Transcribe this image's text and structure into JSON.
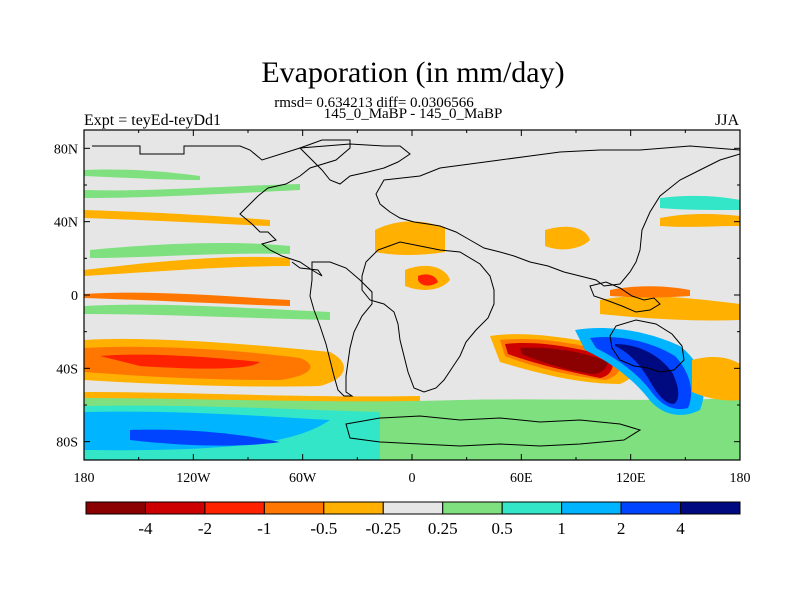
{
  "chart_data": {
    "type": "heatmap",
    "title": "Evaporation (in mm/day)",
    "stats": "rmsd= 0.634213 diff= 0.0306566",
    "subtitle": "145_0_MaBP - 145_0_MaBP",
    "left_label": "Expt = teyEd-teyDd1",
    "right_label": "JJA",
    "x_ticks": [
      "180",
      "120W",
      "60W",
      "0",
      "60E",
      "120E",
      "180"
    ],
    "x_tick_values": [
      -180,
      -120,
      -60,
      0,
      60,
      120,
      180
    ],
    "y_ticks": [
      "80N",
      "40N",
      "0",
      "40S",
      "80S"
    ],
    "y_tick_values": [
      80,
      40,
      0,
      -40,
      -80
    ],
    "xlim": [
      -180,
      180
    ],
    "ylim": [
      -90,
      90
    ],
    "colorbar": {
      "labels": [
        "-4",
        "-2",
        "-1",
        "-0.5",
        "-0.25",
        "0.25",
        "0.5",
        "1",
        "2",
        "4"
      ],
      "levels": [
        -4,
        -2,
        -1,
        -0.5,
        -0.25,
        0.25,
        0.5,
        1,
        2,
        4
      ],
      "colors": [
        "#8b0000",
        "#cc0000",
        "#ff2200",
        "#ff7700",
        "#ffb000",
        "#e6e6e6",
        "#7fe07f",
        "#33e6c8",
        "#00b4ff",
        "#0044ff",
        "#000a80"
      ]
    },
    "features": [
      {
        "name": "south-indian-negative-band",
        "lon": [
          52,
          122
        ],
        "lat": [
          -28,
          -48
        ],
        "level": "-4"
      },
      {
        "name": "australia-south-positive-band",
        "lon": [
          100,
          150
        ],
        "lat": [
          -30,
          -60
        ],
        "level": "4"
      },
      {
        "name": "south-pacific-negative-band",
        "lon": [
          -180,
          -60
        ],
        "lat": [
          -28,
          -45
        ],
        "level": "-1"
      },
      {
        "name": "southern-ocean-positive-band",
        "lon": [
          -180,
          60
        ],
        "lat": [
          -62,
          -90
        ],
        "level": "1"
      }
    ]
  }
}
